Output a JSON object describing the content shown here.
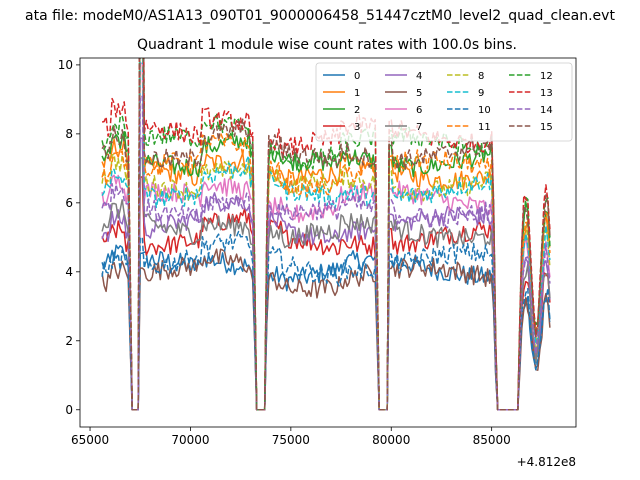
{
  "chart_data": {
    "type": "line",
    "suptitle": "ata file: modeM0/AS1A13_090T01_9000006458_51447cztM0_level2_quad_clean.evt",
    "title": "Quadrant 1 module wise count rates with 100.0s bins.",
    "xlabel": "",
    "ylabel": "",
    "x_offset_label": "+4.812e8",
    "xlim": [
      64500,
      89200
    ],
    "ylim": [
      -0.5,
      10.2
    ],
    "x_ticks": [
      65000,
      70000,
      75000,
      80000,
      85000
    ],
    "x_tick_labels": [
      "65000",
      "70000",
      "75000",
      "80000",
      "85000"
    ],
    "y_ticks": [
      0,
      2,
      4,
      6,
      8,
      10
    ],
    "y_tick_labels": [
      "0",
      "2",
      "4",
      "6",
      "8",
      "10"
    ],
    "grid": false,
    "legend_placement": "top-right",
    "legend_columns": 4,
    "bin_seconds": 100,
    "x_start": 65600,
    "x_end": 87900,
    "gaps": [
      [
        67100,
        67500
      ],
      [
        73300,
        73700
      ],
      [
        79400,
        79900
      ],
      [
        85250,
        86300
      ]
    ],
    "series": [
      {
        "name": "0",
        "level": 4.1,
        "color": "#1f77b4",
        "dash": "solid"
      },
      {
        "name": "1",
        "level": 6.9,
        "color": "#ff7f0e",
        "dash": "solid"
      },
      {
        "name": "2",
        "level": 7.3,
        "color": "#2ca02c",
        "dash": "solid"
      },
      {
        "name": "3",
        "level": 5.0,
        "color": "#d62728",
        "dash": "solid"
      },
      {
        "name": "4",
        "level": 5.4,
        "color": "#9467bd",
        "dash": "solid"
      },
      {
        "name": "5",
        "level": 3.9,
        "color": "#8c564b",
        "dash": "solid"
      },
      {
        "name": "6",
        "level": 6.1,
        "color": "#e377c2",
        "dash": "solid"
      },
      {
        "name": "7",
        "level": 5.2,
        "color": "#7f7f7f",
        "dash": "solid"
      },
      {
        "name": "8",
        "level": 6.6,
        "color": "#bcbd22",
        "dash": "dashed"
      },
      {
        "name": "9",
        "level": 6.4,
        "color": "#17becf",
        "dash": "dashed"
      },
      {
        "name": "10",
        "level": 4.3,
        "color": "#1f77b4",
        "dash": "dashed"
      },
      {
        "name": "11",
        "level": 7.0,
        "color": "#ff7f0e",
        "dash": "dashed"
      },
      {
        "name": "12",
        "level": 7.7,
        "color": "#2ca02c",
        "dash": "dashed"
      },
      {
        "name": "13",
        "level": 8.0,
        "color": "#d62728",
        "dash": "dashed"
      },
      {
        "name": "14",
        "level": 5.8,
        "color": "#9467bd",
        "dash": "dashed"
      },
      {
        "name": "15",
        "level": 7.5,
        "color": "#8c564b",
        "dash": "dashed"
      }
    ]
  }
}
